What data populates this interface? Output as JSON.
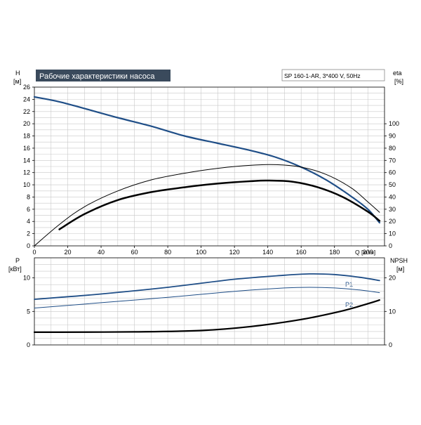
{
  "colors": {
    "blue": "#1f4e87",
    "black": "#000000",
    "grid": "#c8c8c8",
    "title_bg": "#3a4a5c",
    "title_fg": "#ffffff"
  },
  "chart_data": [
    {
      "type": "line",
      "title": "Рабочие характеристики насоса",
      "subtitle": "SP 160-1-AR, 3*400 V, 50Hz",
      "xlabel": "Q [м³/ч]",
      "ylabel_left": "H",
      "ylabel_left_unit": "[м]",
      "ylabel_right": "eta",
      "ylabel_right_unit": "[%]",
      "xlim": [
        0,
        210
      ],
      "ylim_left": [
        0,
        26
      ],
      "ylim_right": [
        0,
        130
      ],
      "x_ticks": [
        "0",
        "20",
        "40",
        "60",
        "80",
        "100",
        "120",
        "140",
        "160",
        "180",
        "200"
      ],
      "left_ticks": [
        "0",
        "2",
        "4",
        "6",
        "8",
        "10",
        "12",
        "14",
        "16",
        "18",
        "20",
        "22",
        "24",
        "26"
      ],
      "right_ticks": [
        "0",
        "10",
        "20",
        "30",
        "40",
        "50",
        "60",
        "70",
        "80",
        "90",
        "100"
      ],
      "grid": true,
      "series": [
        {
          "axis": "left",
          "color": "blue",
          "width": 2.2,
          "x": [
            0,
            15,
            30,
            50,
            70,
            90,
            110,
            130,
            145,
            160,
            175,
            190,
            200,
            207
          ],
          "y": [
            24.4,
            23.6,
            22.5,
            21.0,
            19.6,
            18.0,
            16.8,
            15.6,
            14.5,
            12.9,
            10.8,
            8.1,
            6.0,
            3.8
          ]
        },
        {
          "axis": "right",
          "color": "black",
          "width": 1,
          "x": [
            0,
            15,
            30,
            50,
            70,
            90,
            110,
            130,
            145,
            160,
            175,
            190,
            200,
            207
          ],
          "y": [
            0,
            17.5,
            32,
            45,
            54,
            59.5,
            63.5,
            66,
            66.5,
            64.5,
            58.5,
            47.5,
            36,
            27.5
          ]
        },
        {
          "axis": "right",
          "color": "black",
          "width": 2.5,
          "x": [
            15,
            30,
            50,
            70,
            90,
            110,
            130,
            140,
            155,
            170,
            185,
            200,
            207
          ],
          "y": [
            13.5,
            26,
            37.5,
            44,
            48,
            51,
            53,
            53.5,
            52.5,
            48,
            40,
            28,
            20.5
          ]
        }
      ]
    },
    {
      "type": "line",
      "xlim": [
        0,
        210
      ],
      "ylabel_left": "P",
      "ylabel_left_unit": "[кВт]",
      "ylabel_right": "NPSH",
      "ylabel_right_unit": "[м]",
      "ylim_left": [
        0,
        13
      ],
      "ylim_right": [
        0,
        26
      ],
      "left_ticks": [
        "0",
        "5",
        "10"
      ],
      "right_ticks": [
        "0",
        "10",
        "20"
      ],
      "grid": true,
      "series": [
        {
          "name": "P1",
          "axis": "left",
          "color": "blue",
          "width": 1.8,
          "x": [
            0,
            15,
            40,
            80,
            120,
            150,
            165,
            180,
            195,
            207
          ],
          "y": [
            6.8,
            7.1,
            7.6,
            8.6,
            9.8,
            10.4,
            10.6,
            10.5,
            10.1,
            9.6
          ]
        },
        {
          "name": "P2",
          "axis": "left",
          "color": "blue",
          "width": 1,
          "x": [
            0,
            15,
            40,
            80,
            120,
            150,
            165,
            180,
            195,
            207
          ],
          "y": [
            5.5,
            5.8,
            6.3,
            7.1,
            8.0,
            8.5,
            8.6,
            8.5,
            8.2,
            7.8
          ]
        },
        {
          "axis": "right",
          "color": "black",
          "width": 2.2,
          "x": [
            0,
            15,
            60,
            100,
            130,
            160,
            185,
            200,
            207
          ],
          "y": [
            3.8,
            3.8,
            3.9,
            4.3,
            5.5,
            7.6,
            10.2,
            12.3,
            13.4
          ]
        }
      ]
    }
  ]
}
